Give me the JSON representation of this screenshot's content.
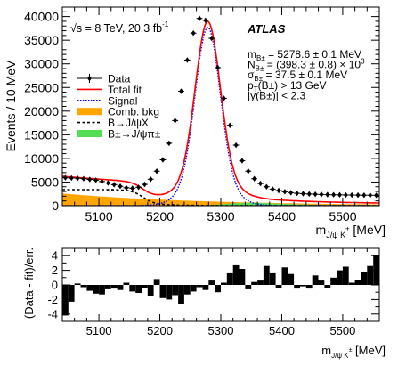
{
  "chart_data": [
    {
      "type": "histogram",
      "title": "",
      "xlabel": "m_{J/ψ K±} [MeV]",
      "xlabel_main": "m",
      "xlabel_sub": "J/ψ K",
      "xlabel_sup": "±",
      "xlabel_unit": " [MeV]",
      "ylabel": "Events /  10 MeV",
      "xlim": [
        5040,
        5560
      ],
      "ylim": [
        0,
        42000
      ],
      "x_ticks": [
        5100,
        5200,
        5300,
        5400,
        5500
      ],
      "y_ticks": [
        0,
        5000,
        10000,
        15000,
        20000,
        25000,
        30000,
        35000,
        40000
      ],
      "energy_label": "√s = 8 TeV, 20.3 fb",
      "energy_sup": "-1",
      "experiment": "ATLAS",
      "fit_results": [
        {
          "main": "m",
          "sub": "B±",
          "rest": " = 5278.6 ± 0.1 MeV"
        },
        {
          "main": "N",
          "sub": "B±",
          "rest": " = (398.3 ± 0.8) × 10",
          "sup": "3"
        },
        {
          "main": "σ",
          "sub": "B±",
          "rest": " = 37.5 ± 0.1 MeV"
        },
        {
          "main": "p",
          "sub": "T",
          "rest": "(B±) > 13 GeV"
        },
        {
          "main": "|y(B±)| < 2.3",
          "sub": "",
          "rest": ""
        }
      ],
      "legend_position": "left",
      "series": [
        {
          "name": "Data",
          "color": "#000000",
          "x": [
            5045,
            5055,
            5065,
            5075,
            5085,
            5095,
            5105,
            5115,
            5125,
            5135,
            5145,
            5155,
            5165,
            5175,
            5185,
            5195,
            5205,
            5215,
            5225,
            5235,
            5245,
            5255,
            5265,
            5275,
            5285,
            5295,
            5305,
            5315,
            5325,
            5335,
            5345,
            5355,
            5365,
            5375,
            5385,
            5395,
            5405,
            5415,
            5425,
            5435,
            5445,
            5455,
            5465,
            5475,
            5485,
            5495,
            5505,
            5515,
            5525,
            5535,
            5545,
            5555
          ],
          "y": [
            5900,
            5850,
            5800,
            5700,
            5550,
            5400,
            5100,
            4800,
            4450,
            4100,
            3800,
            3700,
            3900,
            4500,
            5600,
            7300,
            9700,
            13200,
            18000,
            24200,
            30800,
            36500,
            39600,
            39200,
            35400,
            29200,
            22700,
            17000,
            12800,
            9500,
            7300,
            5700,
            4700,
            4000,
            3500,
            3200,
            2950,
            2750,
            2620,
            2540,
            2470,
            2420,
            2380,
            2340,
            2310,
            2290,
            2270,
            2250,
            2235,
            2220,
            2210,
            2200
          ]
        },
        {
          "name": "Total fit",
          "color": "#ff0000"
        },
        {
          "name": "Signal",
          "color": "#0000ff",
          "style": "dotted"
        },
        {
          "name": "Comb. bkg",
          "color": "#ffa500",
          "style": "filled"
        },
        {
          "name": "B→J/ψX",
          "color": "#000000",
          "style": "dashed"
        },
        {
          "name": "B±→J/ψπ±",
          "color": "#55dd55",
          "style": "filled"
        }
      ]
    },
    {
      "type": "bar",
      "title": "",
      "xlabel": "m_{J/ψ K±} [MeV]",
      "ylabel": "(Data - fit)/err.",
      "xlim": [
        5040,
        5560
      ],
      "ylim": [
        -5,
        5
      ],
      "x_ticks": [
        5100,
        5200,
        5300,
        5400,
        5500
      ],
      "y_ticks": [
        -4,
        -2,
        0,
        2,
        4
      ],
      "x": [
        5045,
        5055,
        5065,
        5075,
        5085,
        5095,
        5105,
        5115,
        5125,
        5135,
        5145,
        5155,
        5165,
        5175,
        5185,
        5195,
        5205,
        5215,
        5225,
        5235,
        5245,
        5255,
        5265,
        5275,
        5285,
        5295,
        5305,
        5315,
        5325,
        5335,
        5345,
        5355,
        5365,
        5375,
        5385,
        5395,
        5405,
        5415,
        5425,
        5435,
        5445,
        5455,
        5465,
        5475,
        5485,
        5495,
        5505,
        5515,
        5525,
        5535,
        5545,
        5555
      ],
      "values": [
        -4.2,
        -2.3,
        0.2,
        -0.3,
        -0.8,
        -1.2,
        -1.3,
        -0.6,
        -0.5,
        -0.7,
        0.3,
        -0.9,
        -1.1,
        -0.4,
        -1.5,
        0.8,
        -1.8,
        -2.0,
        -1.4,
        -2.6,
        -1.3,
        -0.9,
        -0.3,
        -0.7,
        0.6,
        -1.0,
        0.3,
        1.6,
        2.7,
        2.2,
        -0.6,
        0.4,
        0.6,
        2.6,
        1.6,
        -0.4,
        2.4,
        1.5,
        -0.5,
        -0.2,
        -0.5,
        1.3,
        0.6,
        -0.4,
        1.0,
        2.0,
        2.5,
        0.3,
        0.7,
        1.8,
        2.6,
        4.0
      ]
    }
  ]
}
